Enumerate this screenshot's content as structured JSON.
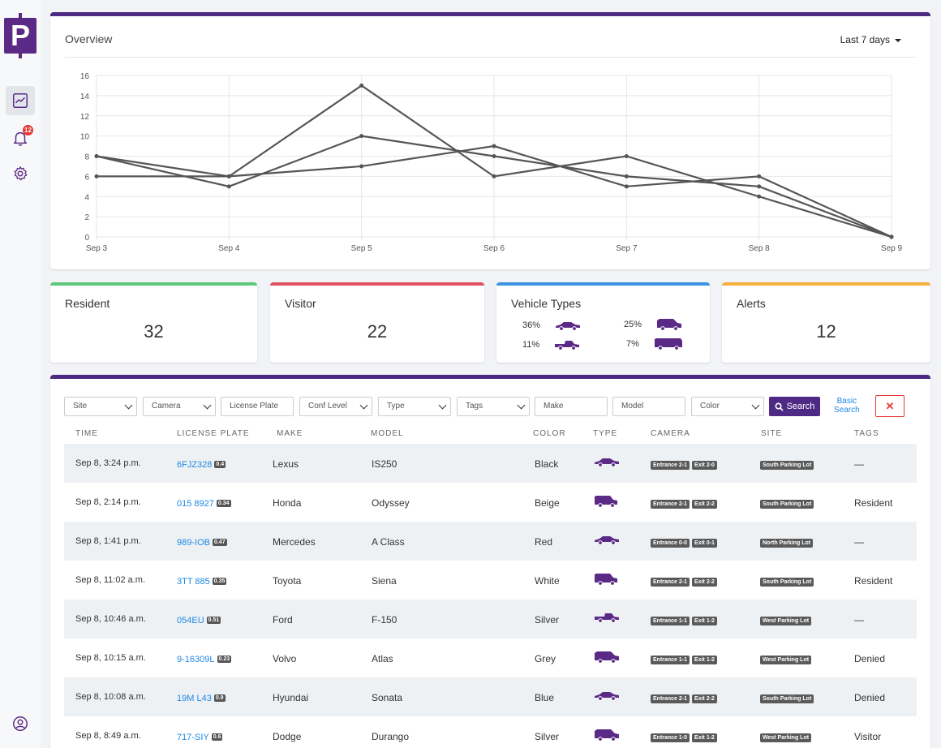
{
  "sidebar": {
    "logo_letter": "P",
    "notification_count": "12",
    "brand_color": "#5b2a86"
  },
  "overview": {
    "title": "Overview",
    "range": "Last 7 days",
    "chart_data": {
      "type": "line",
      "categories": [
        "Sep 3",
        "Sep 4",
        "Sep 5",
        "Sep 6",
        "Sep 7",
        "Sep 8",
        "Sep 9"
      ],
      "ylim": [
        0,
        16
      ],
      "yticks": [
        0,
        2,
        4,
        6,
        8,
        10,
        12,
        14,
        16
      ],
      "grid": true,
      "series": [
        {
          "values": [
            8,
            6,
            15,
            6,
            8,
            4,
            0
          ]
        },
        {
          "values": [
            8,
            5,
            10,
            8,
            6,
            5,
            0
          ]
        },
        {
          "values": [
            6,
            6,
            7,
            9,
            5,
            6,
            0
          ]
        }
      ],
      "line_color": "#555555"
    }
  },
  "stats": {
    "resident": {
      "title": "Resident",
      "value": "32",
      "color": "#5cc97a"
    },
    "visitor": {
      "title": "Visitor",
      "value": "22",
      "color": "#e05262"
    },
    "vehicle_types": {
      "title": "Vehicle Types",
      "color": "#3a93e0",
      "items": [
        {
          "pct": "36%",
          "icon": "sedan-icon"
        },
        {
          "pct": "25%",
          "icon": "suv-icon"
        },
        {
          "pct": "11%",
          "icon": "pickup-icon"
        },
        {
          "pct": "7%",
          "icon": "van-icon"
        }
      ]
    },
    "alerts": {
      "title": "Alerts",
      "value": "12",
      "color": "#f5b041"
    }
  },
  "filters": {
    "site": "Site",
    "camera": "Camera",
    "license_plate": "License Plate",
    "conf_level": "Conf Level",
    "type": "Type",
    "tags": "Tags",
    "make": "Make",
    "model": "Model",
    "color": "Color",
    "search": "Search",
    "basic_search_1": "Basic",
    "basic_search_2": "Search",
    "clear": "✕"
  },
  "table": {
    "headers": {
      "time": "TIME",
      "plate": "LICENSE PLATE",
      "make": "MAKE",
      "model": "MODEL",
      "color": "COLOR",
      "type": "TYPE",
      "camera": "CAMERA",
      "site": "SITE",
      "tags": "TAGS"
    },
    "rows": [
      {
        "time": "Sep 8, 3:24 p.m.",
        "plate": "6FJZ328",
        "conf": "0.4",
        "make": "Lexus",
        "model": "IS250",
        "color": "Black",
        "type": "sedan-icon",
        "entrance": "Entrance 2-1",
        "exit": "Exit 2-0",
        "site": "South Parking Lot",
        "tags": "—"
      },
      {
        "time": "Sep 8, 2:14 p.m.",
        "plate": "015 8927",
        "conf": "0.34",
        "make": "Honda",
        "model": "Odyssey",
        "color": "Beige",
        "type": "van-icon",
        "entrance": "Entrance 2-1",
        "exit": "Exit 2-2",
        "site": "South Parking Lot",
        "tags": "Resident"
      },
      {
        "time": "Sep 8, 1:41 p.m.",
        "plate": "989-IOB",
        "conf": "0.47",
        "make": "Mercedes",
        "model": "A Class",
        "color": "Red",
        "type": "sedan-icon",
        "entrance": "Entrance 0-0",
        "exit": "Exit 0-1",
        "site": "North Parking Lot",
        "tags": "—"
      },
      {
        "time": "Sep 8, 11:02 a.m.",
        "plate": "3TT 885",
        "conf": "0.35",
        "make": "Toyota",
        "model": "Siena",
        "color": "White",
        "type": "van-icon",
        "entrance": "Entrance 2-1",
        "exit": "Exit 2-2",
        "site": "South Parking Lot",
        "tags": "Resident"
      },
      {
        "time": "Sep 8, 10:46 a.m.",
        "plate": "054EU",
        "conf": "0.51",
        "make": "Ford",
        "model": "F-150",
        "color": "Silver",
        "type": "pickup-icon",
        "entrance": "Entrance 1-1",
        "exit": "Exit 1-2",
        "site": "West Parking Lot",
        "tags": "—"
      },
      {
        "time": "Sep 8, 10:15 a.m.",
        "plate": "9-16309L",
        "conf": "0.23",
        "make": "Volvo",
        "model": "Atlas",
        "color": "Grey",
        "type": "suv-icon",
        "entrance": "Entrance 1-1",
        "exit": "Exit 1-2",
        "site": "West Parking Lot",
        "tags": "Denied"
      },
      {
        "time": "Sep 8, 10:08 a.m.",
        "plate": "19M L43",
        "conf": "0.9",
        "make": "Hyundai",
        "model": "Sonata",
        "color": "Blue",
        "type": "sedan-icon",
        "entrance": "Entrance 2-1",
        "exit": "Exit 2-2",
        "site": "South Parking Lot",
        "tags": "Denied"
      },
      {
        "time": "Sep 8, 8:49 a.m.",
        "plate": "717-SIY",
        "conf": "0.6",
        "make": "Dodge",
        "model": "Durango",
        "color": "Silver",
        "type": "suv-icon",
        "entrance": "Entrance 1-0",
        "exit": "Exit 1-2",
        "site": "West Parking Lot",
        "tags": "Visitor"
      }
    ]
  }
}
